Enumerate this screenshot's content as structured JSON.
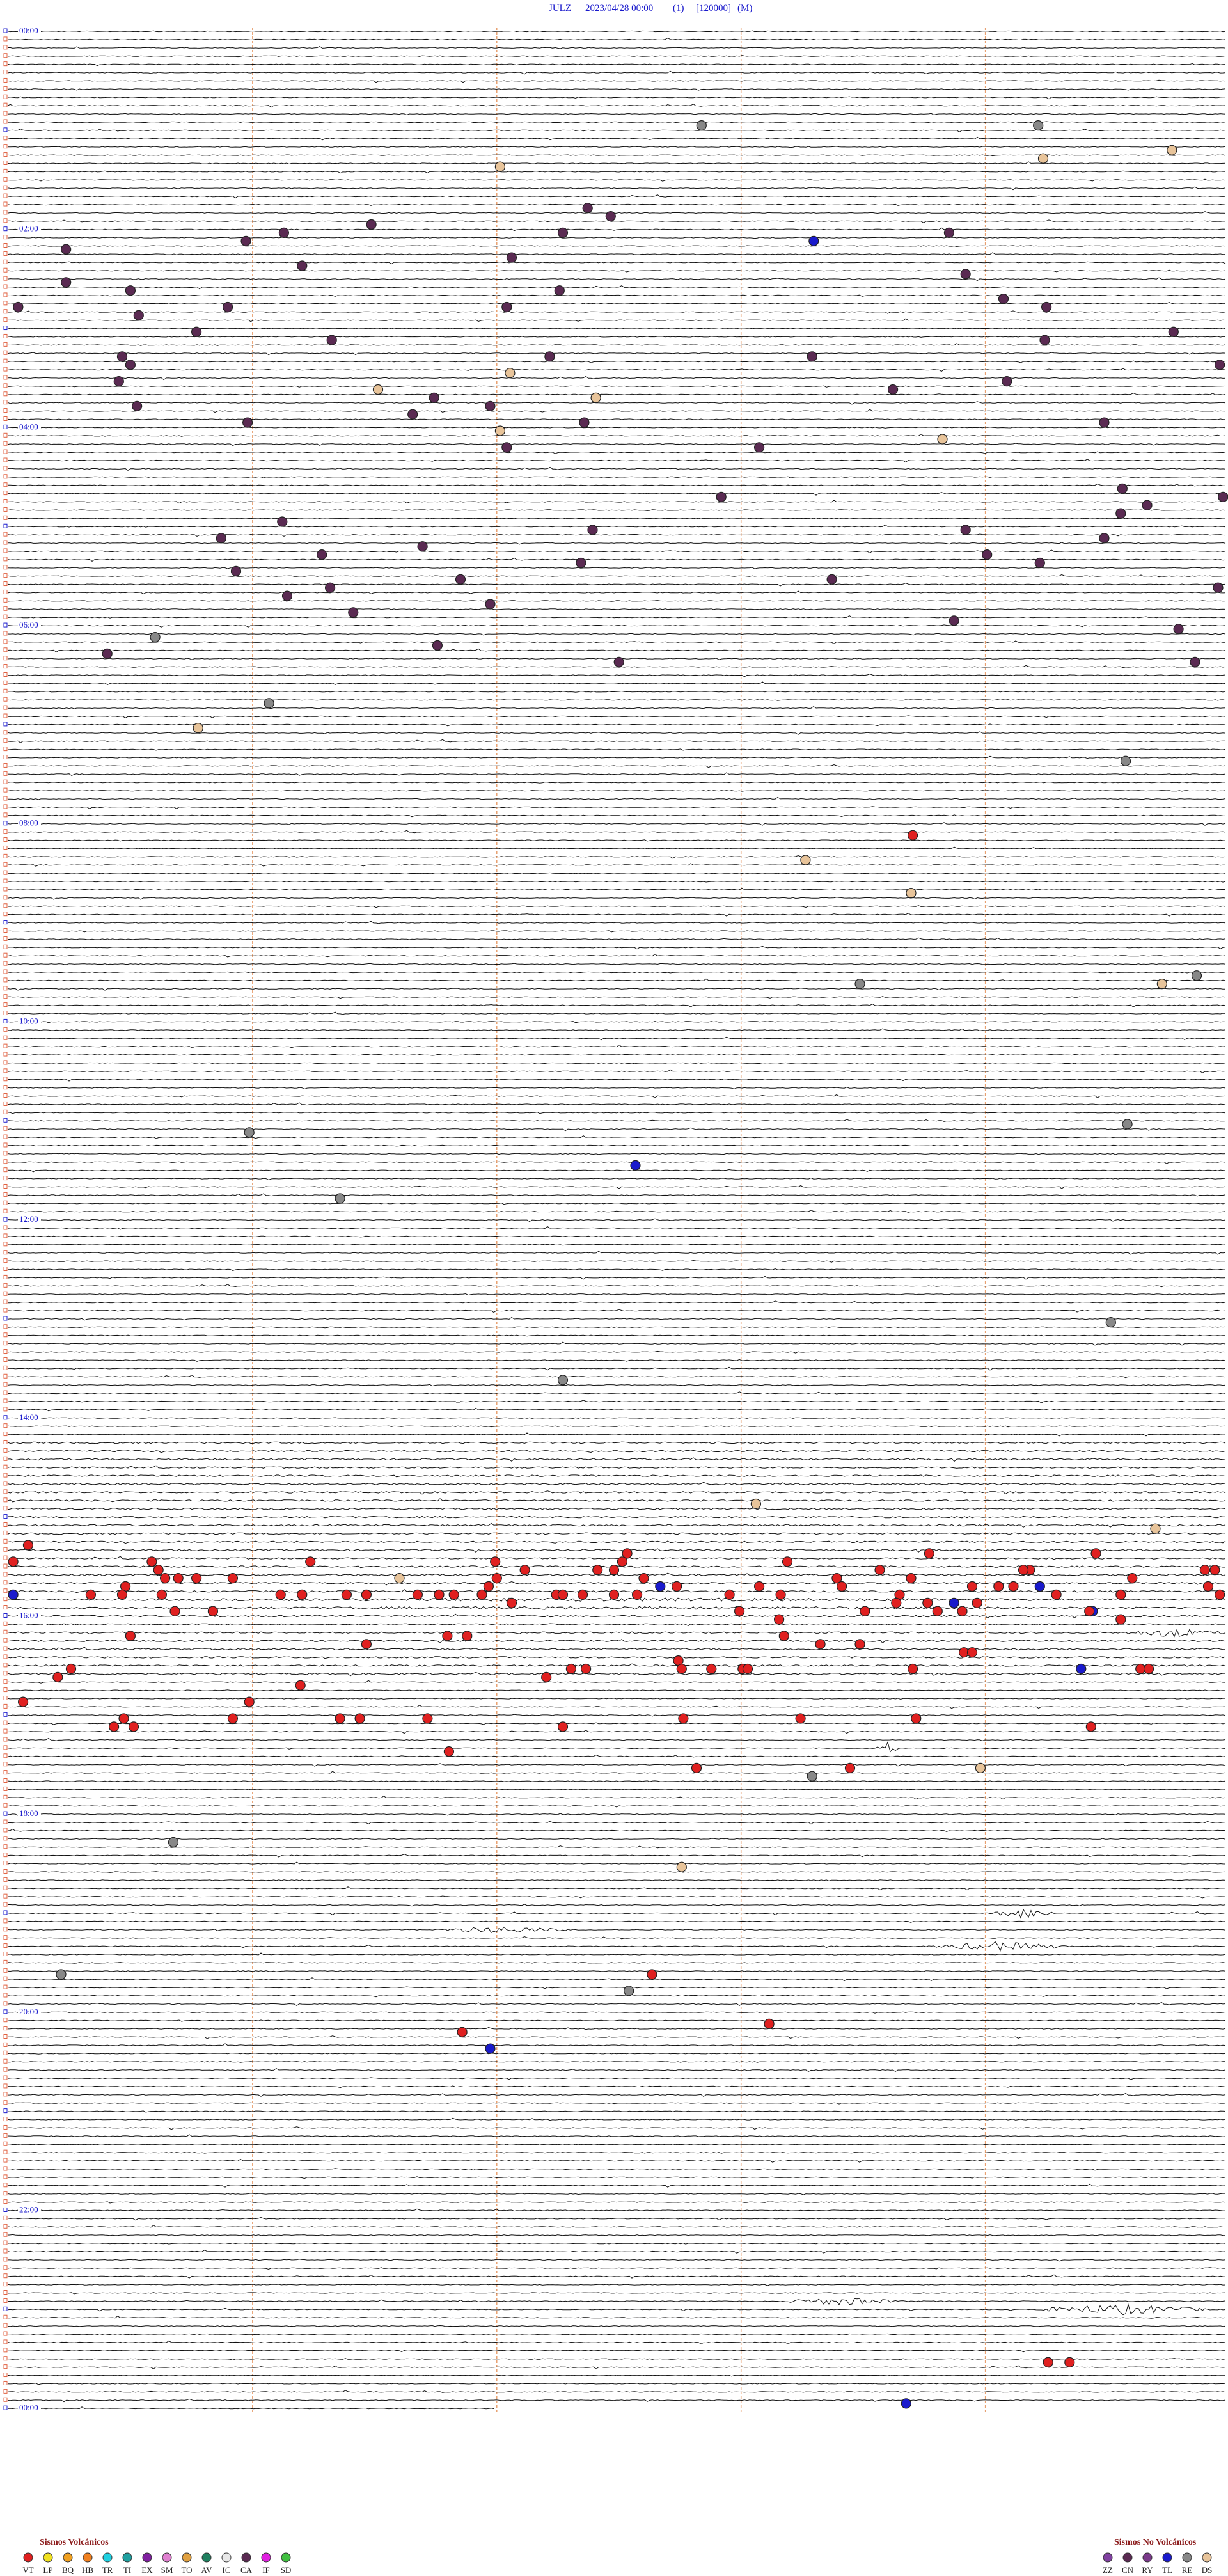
{
  "header": {
    "station": "JULZ",
    "datetime": "2023/04/28 00:00",
    "component": "(1)",
    "scale": "[120000]",
    "mode": "(M)"
  },
  "hour_labels": [
    "00:00",
    "02:00",
    "04:00",
    "06:00",
    "08:00",
    "10:00",
    "12:00",
    "14:00",
    "16:00",
    "18:00",
    "20:00",
    "22:00",
    "00:00"
  ],
  "legend": {
    "volcanic": {
      "title": "Sismos Volcánicos",
      "items": [
        "VT",
        "LP",
        "BQ",
        "HB",
        "TR",
        "TI",
        "EX",
        "SM",
        "TO",
        "AV",
        "IC",
        "CA",
        "IF",
        "SD"
      ]
    },
    "non_volcanic": {
      "title": "Sismos No Volcánicos",
      "items": [
        "ZZ",
        "CN",
        "RY",
        "TL",
        "RE",
        "DS"
      ]
    }
  }
}
